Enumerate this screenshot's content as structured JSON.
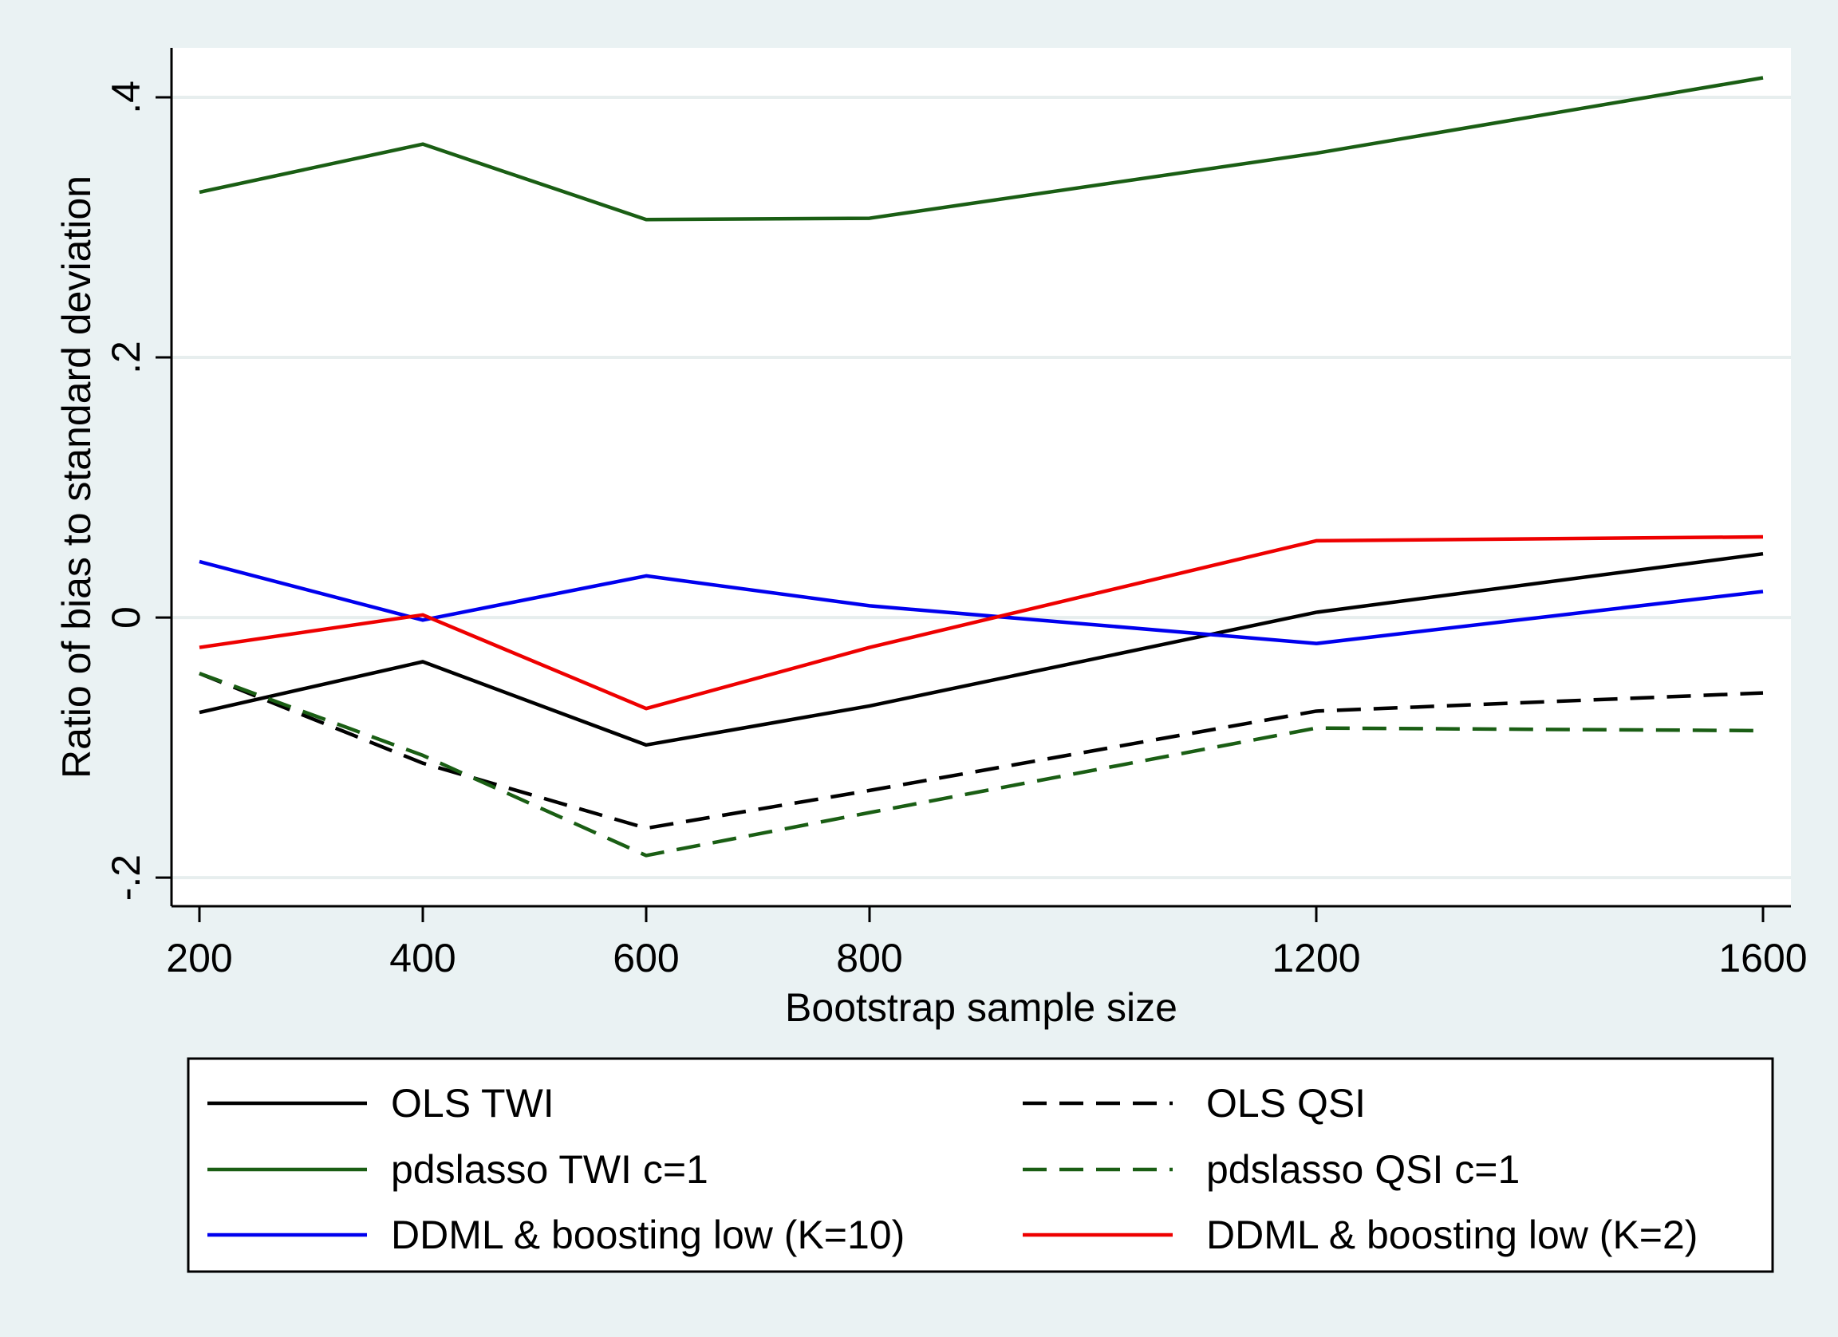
{
  "chart_data": {
    "type": "line",
    "xlabel": "Bootstrap sample size",
    "ylabel": "Ratio of bias to standard deviation",
    "x": [
      200,
      400,
      600,
      800,
      1200,
      1600
    ],
    "x_ticks": [
      "200",
      "400",
      "600",
      "800",
      "1200",
      "1600"
    ],
    "y_ticks": [
      {
        "value": -0.2,
        "label": "-.2"
      },
      {
        "value": 0,
        "label": "0"
      },
      {
        "value": 0.2,
        "label": ".2"
      },
      {
        "value": 0.4,
        "label": ".4"
      }
    ],
    "xlim": [
      175,
      1625
    ],
    "ylim": [
      -0.222,
      0.438
    ],
    "grid": "horizontal",
    "legend_position": "bottom",
    "series": [
      {
        "name": "OLS TWI",
        "color": "#000000",
        "dash": "solid",
        "values": [
          -0.073,
          -0.034,
          -0.098,
          -0.068,
          0.004,
          0.049
        ]
      },
      {
        "name": "OLS QSI",
        "color": "#000000",
        "dash": "dashed",
        "values": [
          -0.043,
          -0.112,
          -0.162,
          -0.133,
          -0.072,
          -0.058
        ]
      },
      {
        "name": "pdslasso TWI c=1",
        "color": "#1a5e14",
        "dash": "solid",
        "values": [
          0.327,
          0.364,
          0.306,
          0.307,
          0.357,
          0.415
        ]
      },
      {
        "name": "pdslasso QSI c=1",
        "color": "#1a5e14",
        "dash": "dashed",
        "values": [
          -0.043,
          -0.106,
          -0.183,
          -0.15,
          -0.085,
          -0.087
        ]
      },
      {
        "name": "DDML & boosting low (K=10)",
        "color": "#0000ee",
        "dash": "solid",
        "values": [
          0.043,
          -0.002,
          0.032,
          0.009,
          -0.02,
          0.02
        ]
      },
      {
        "name": "DDML & boosting low (K=2)",
        "color": "#ee0000",
        "dash": "solid",
        "values": [
          -0.023,
          0.002,
          -0.07,
          -0.023,
          0.059,
          0.062
        ]
      }
    ]
  }
}
